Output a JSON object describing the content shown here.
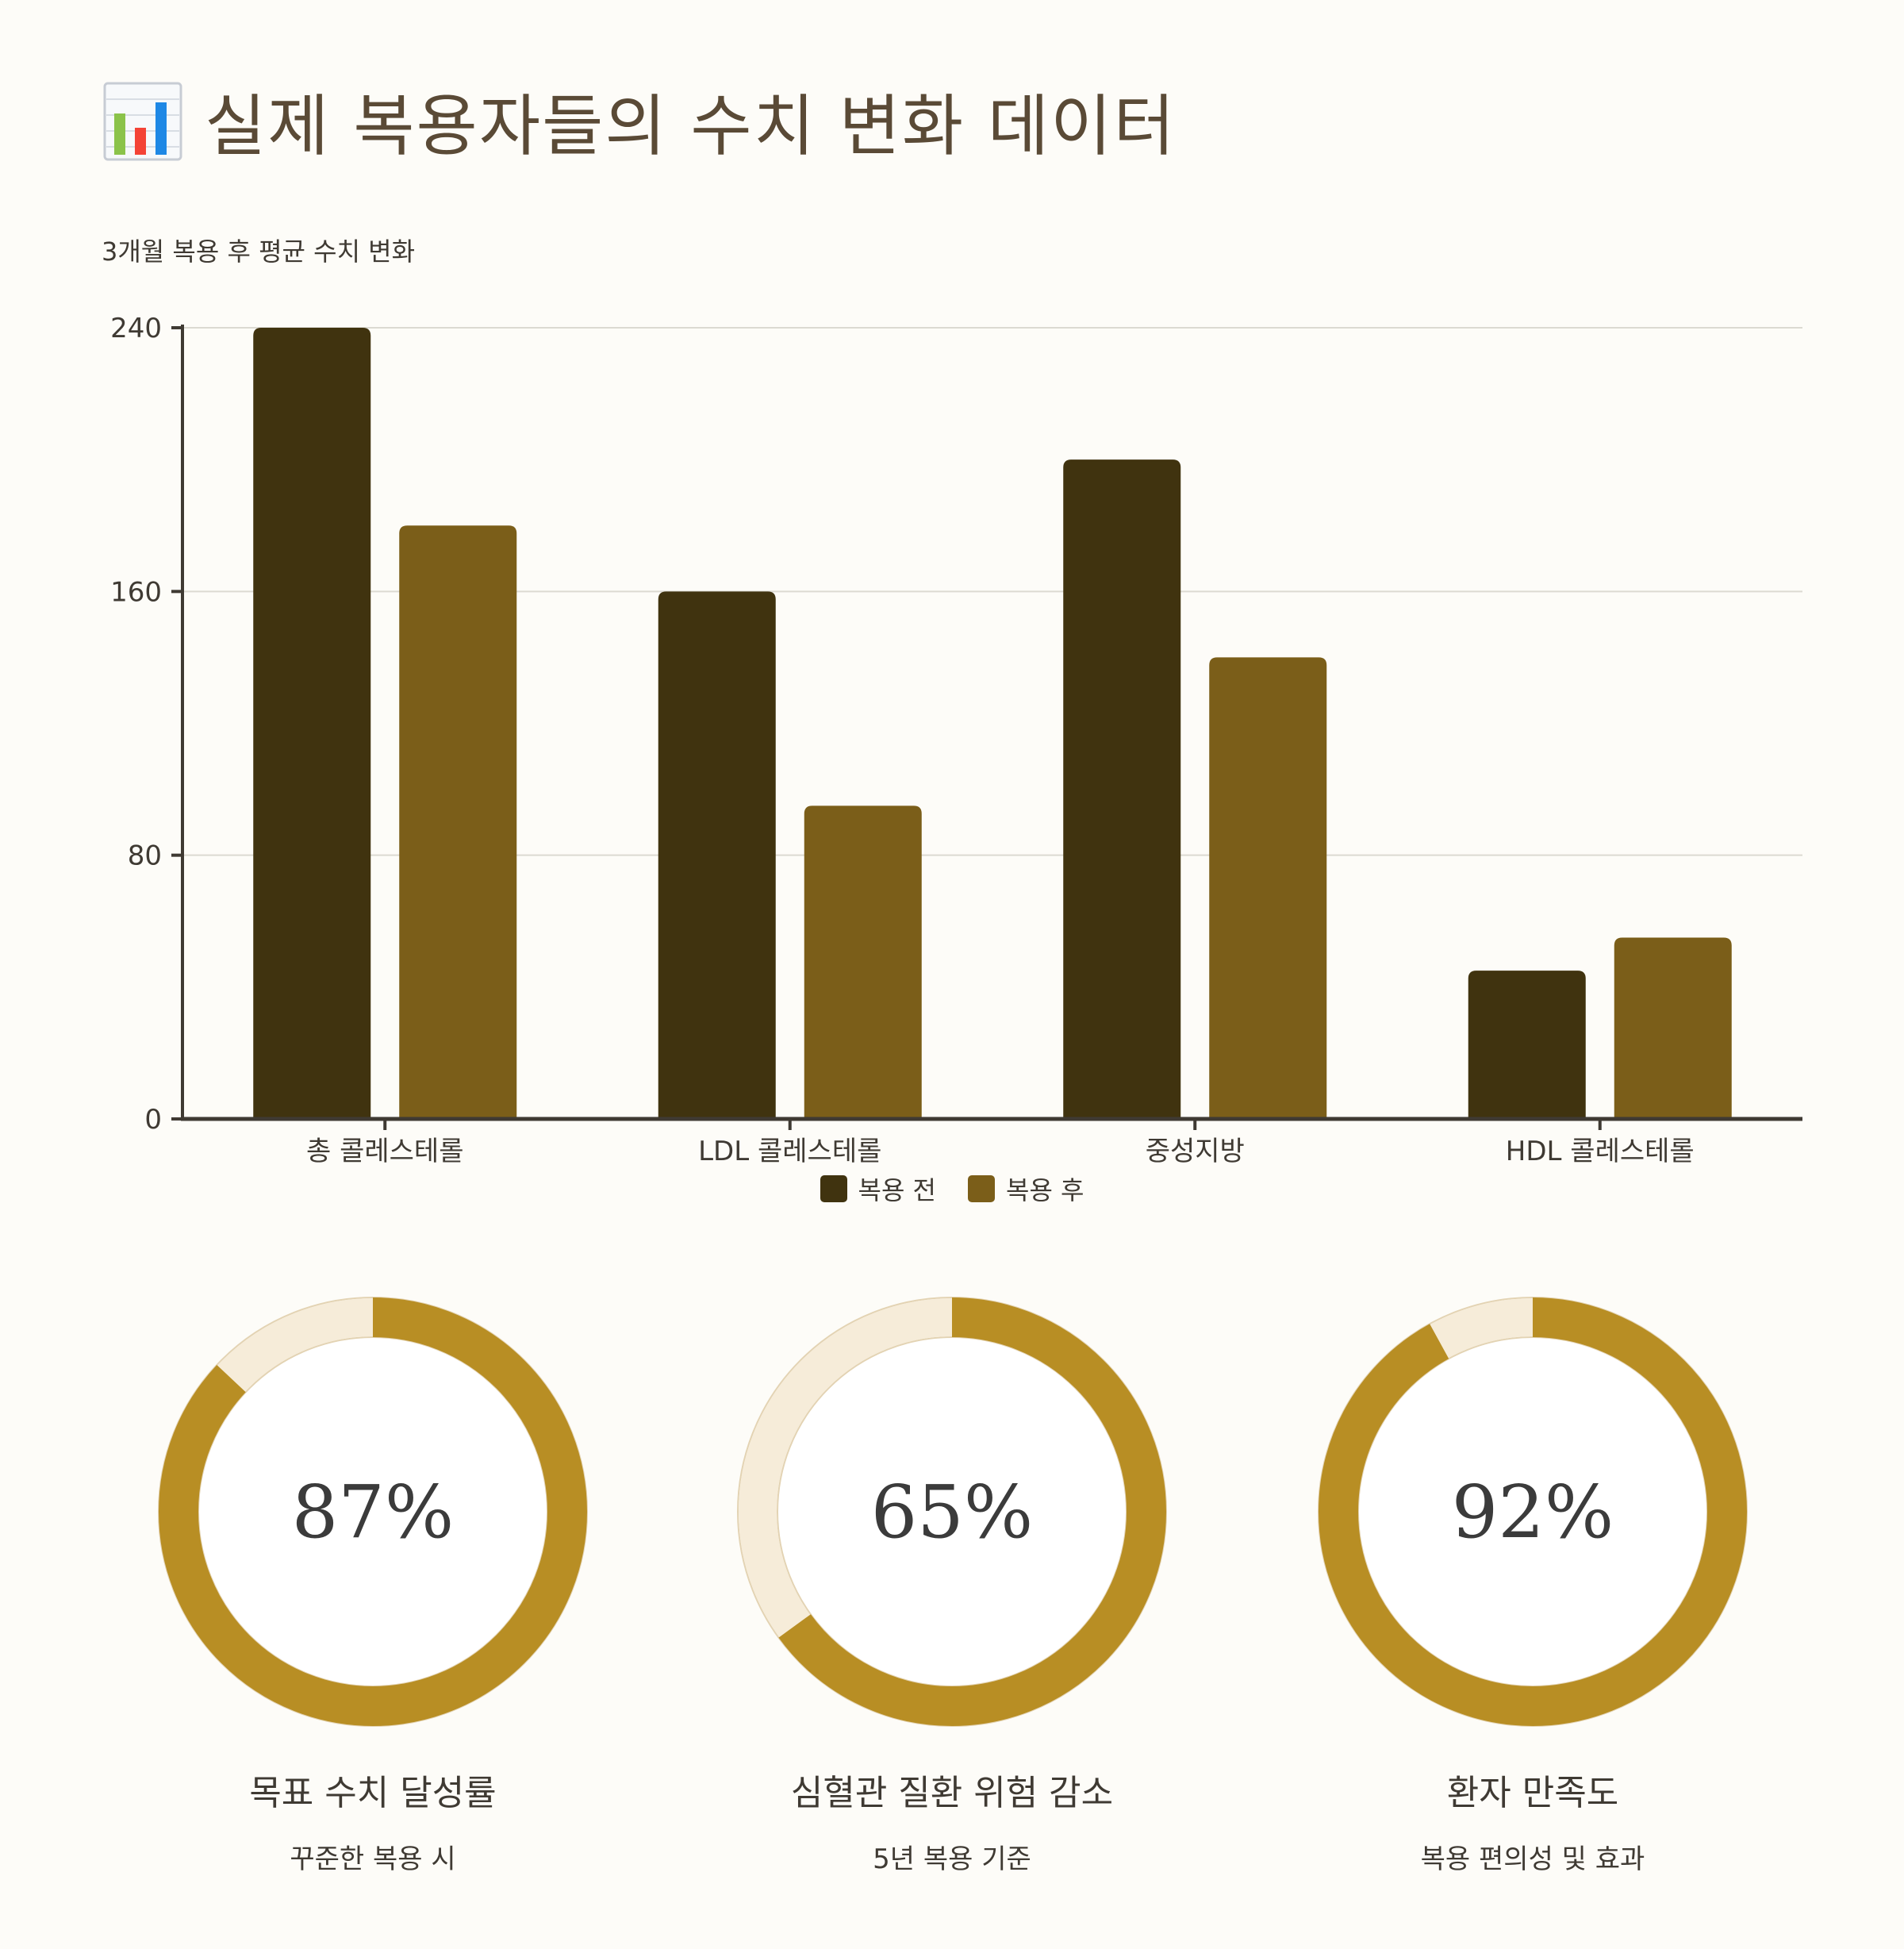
{
  "header": {
    "icon": "bar-chart-icon",
    "title": "실제 복용자들의 수치 변화 데이터"
  },
  "chart_data": {
    "type": "bar",
    "title": "3개월 복용 후 평균 수치 변화",
    "categories": [
      "총 콜레스테롤",
      "LDL 콜레스테롤",
      "중성지방",
      "HDL 콜레스테롤"
    ],
    "series": [
      {
        "name": "복용 전",
        "values": [
          240,
          160,
          200,
          45
        ],
        "color": "#40330f"
      },
      {
        "name": "복용 후",
        "values": [
          180,
          95,
          140,
          55
        ],
        "color": "#7b5e19"
      }
    ],
    "ylim": [
      0,
      240
    ],
    "yticks": [
      0,
      80,
      160,
      240
    ],
    "grid": true,
    "legend": "bottom-center"
  },
  "stats": [
    {
      "value": 87,
      "value_label": "87%",
      "label": "목표 수치 달성률",
      "sub": "꾸준한 복용 시"
    },
    {
      "value": 65,
      "value_label": "65%",
      "label": "심혈관 질환 위험 감소",
      "sub": "5년 복용 기준"
    },
    {
      "value": 92,
      "value_label": "92%",
      "label": "환자 만족도",
      "sub": "복용 편의성 및 효과"
    }
  ],
  "colors": {
    "ring_fill": "#b88e24",
    "ring_track": "#f6ecd9",
    "ring_track_stroke": "#e3d3b3"
  }
}
